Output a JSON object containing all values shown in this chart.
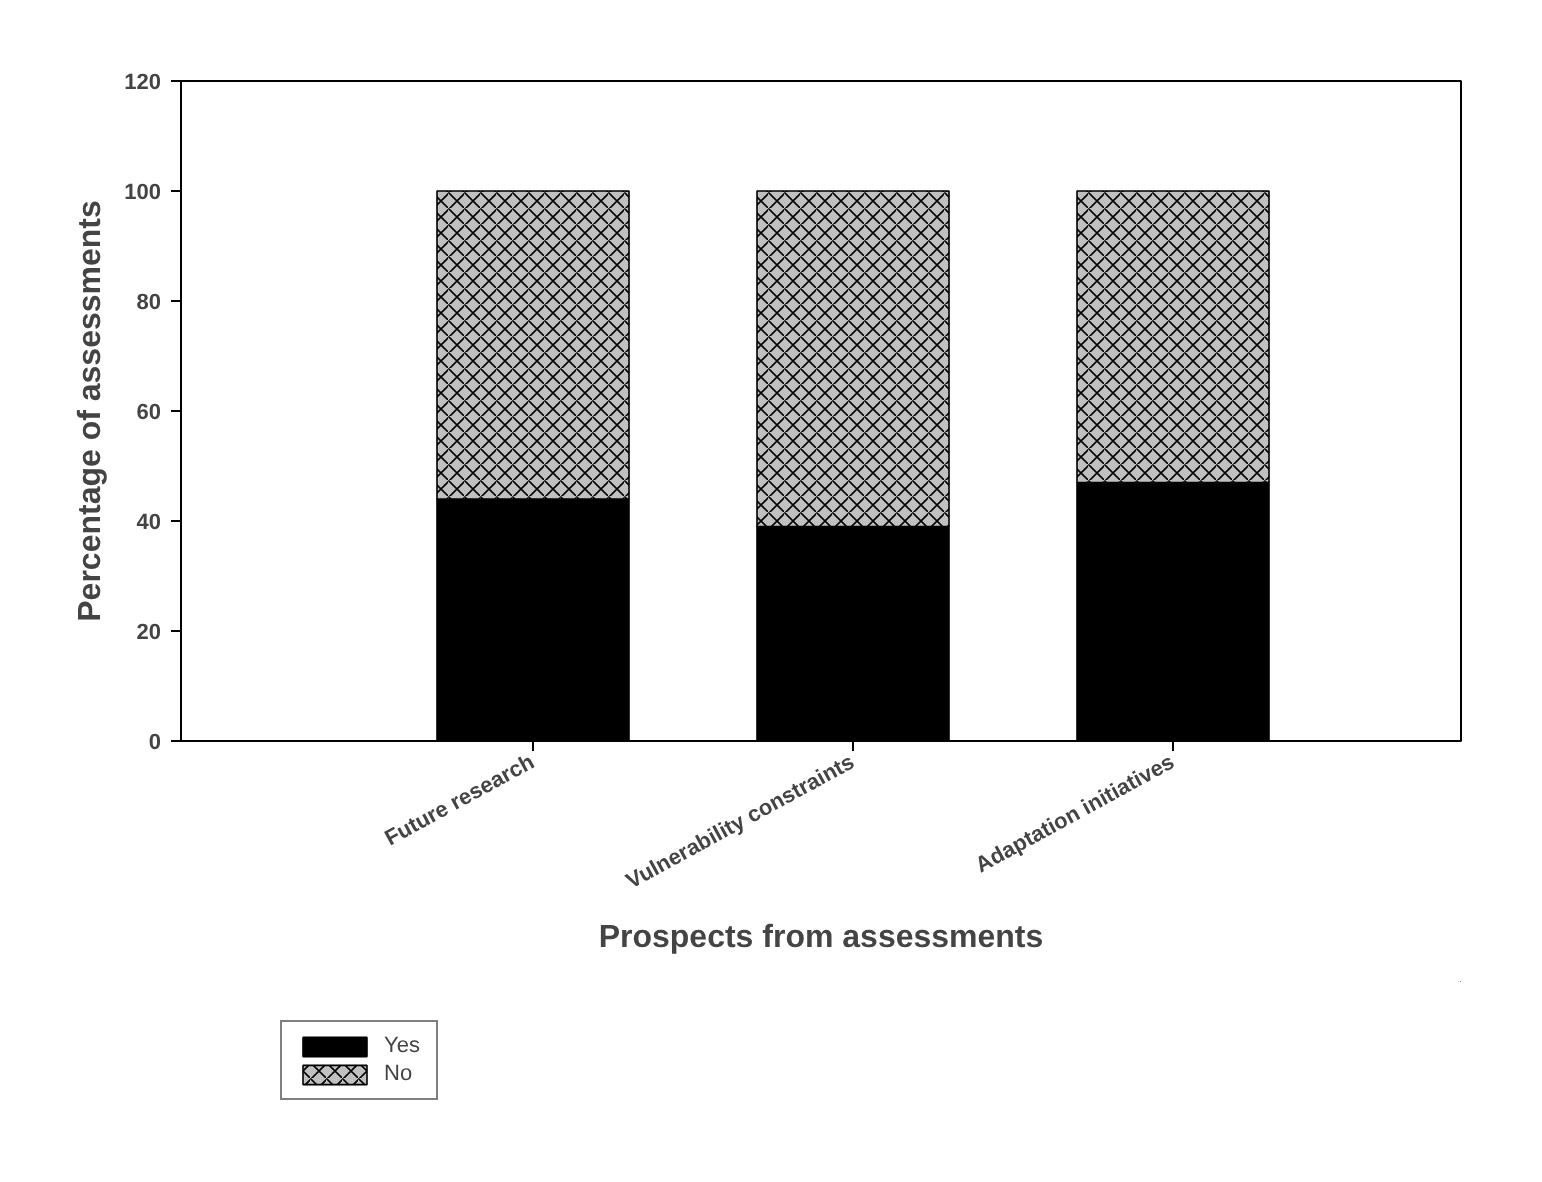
{
  "chart_data": {
    "type": "bar",
    "stacked": true,
    "xlabel": "Prospects from assessments",
    "ylabel": "Percentage of assessments",
    "categories": [
      "Future research",
      "Vulnerability constraints",
      "Adaptation initiatives"
    ],
    "series": [
      {
        "name": "Yes",
        "color": "#000000",
        "values": [
          44,
          39,
          47
        ]
      },
      {
        "name": "No",
        "color": "#c0c0c0",
        "values": [
          56,
          61,
          53
        ]
      }
    ],
    "ylim": [
      0,
      120
    ],
    "yticks": [
      0,
      20,
      40,
      60,
      80,
      100,
      120
    ],
    "grid": false,
    "legend": "bottom left"
  }
}
